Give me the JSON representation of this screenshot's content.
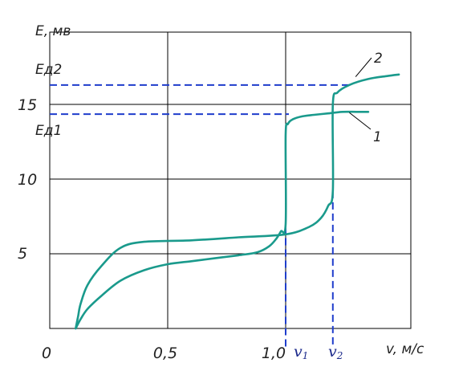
{
  "chart_data": {
    "type": "line",
    "xlabel": "v, м/с",
    "ylabel": "E, мв",
    "xlim": [
      0,
      1.55
    ],
    "ylim": [
      0,
      20
    ],
    "grid": true,
    "x_ticks": [
      "0",
      "0,5",
      "1,0"
    ],
    "y_ticks": [
      "5",
      "10",
      "15"
    ],
    "series": [
      {
        "name": "1",
        "color": "#1a9a8c",
        "x": [
          0.11,
          0.13,
          0.16,
          0.22,
          0.3,
          0.4,
          0.5,
          0.6,
          0.7,
          0.8,
          0.88,
          0.93,
          0.96,
          0.98,
          1.0,
          1.0,
          1.01,
          1.03,
          1.07,
          1.12,
          1.18,
          1.24,
          1.3,
          1.35
        ],
        "y": [
          0.0,
          0.6,
          1.3,
          2.2,
          3.2,
          3.9,
          4.3,
          4.5,
          4.7,
          4.9,
          5.1,
          5.5,
          6.0,
          6.5,
          7.0,
          13.0,
          13.7,
          14.0,
          14.2,
          14.3,
          14.4,
          14.5,
          14.5,
          14.5
        ],
        "label": "1"
      },
      {
        "name": "2",
        "color": "#1a9a8c",
        "x": [
          0.11,
          0.12,
          0.13,
          0.16,
          0.22,
          0.3,
          0.4,
          0.6,
          0.8,
          1.0,
          1.1,
          1.15,
          1.18,
          1.2,
          1.2,
          1.22,
          1.27,
          1.35,
          1.43,
          1.48
        ],
        "y": [
          0.0,
          0.8,
          1.6,
          2.9,
          4.2,
          5.4,
          5.8,
          5.9,
          6.1,
          6.3,
          6.8,
          7.4,
          8.2,
          9.2,
          15.0,
          15.8,
          16.3,
          16.7,
          16.9,
          17.0
        ],
        "label": "2"
      }
    ],
    "markers": {
      "v1": {
        "label": "v",
        "sub": "1",
        "x": 1.0
      },
      "v2": {
        "label": "v",
        "sub": "2",
        "x": 1.2
      },
      "ed1": {
        "label": "Eд1",
        "y": 14.35
      },
      "ed2": {
        "label": "Eд2",
        "y": 16.3
      }
    },
    "dash_color": "#1f3dcc"
  }
}
